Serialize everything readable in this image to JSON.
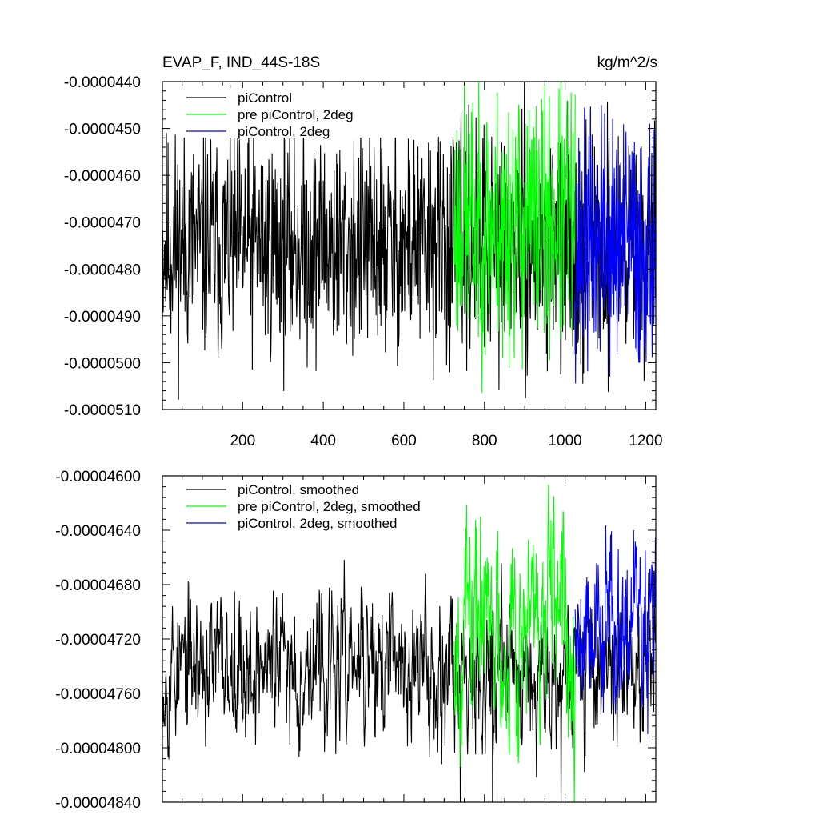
{
  "chart_data": [
    {
      "type": "line",
      "title": "EVAP_F, IND_44S-18S",
      "units": "kg/m^2/s",
      "xlim": [
        1,
        1225
      ],
      "ylim": [
        -5.1e-05,
        -4.4e-05
      ],
      "x_ticks": [
        200,
        400,
        600,
        800,
        1000,
        1200
      ],
      "y_ticks": [
        -4.4e-05,
        -4.5e-05,
        -4.6e-05,
        -4.7e-05,
        -4.8e-05,
        -4.9e-05,
        -5e-05,
        -5.1e-05
      ],
      "y_tick_labels": [
        "-0.0000440",
        "-0.0000450",
        "-0.0000460",
        "-0.0000470",
        "-0.0000480",
        "-0.0000490",
        "-0.0000500",
        "-0.0000510"
      ],
      "x_tick_labels": [
        "200",
        "400",
        "600",
        "800",
        "1000",
        "1200"
      ],
      "legend_position": "top-left",
      "grid": false,
      "series": [
        {
          "name": "piControl",
          "color": "#000000",
          "x_range": [
            1,
            1225
          ],
          "mean": -4.75e-05,
          "amp": 1.2e-06,
          "spikes": [
            [
              148,
              -4.97e-05
            ],
            [
              990,
              -5.02e-05
            ],
            [
              1080,
              -4.97e-05
            ]
          ],
          "seed": 11
        },
        {
          "name": "pre piControl, 2deg",
          "color": "#00ff00",
          "x_range": [
            725,
            1025
          ],
          "mean": -4.7e-05,
          "amp": 1.4e-06,
          "spikes": [
            [
              1005,
              -4.44e-05
            ],
            [
              845,
              -4.99e-05
            ],
            [
              720,
              -4.6e-05
            ]
          ],
          "seed": 23
        },
        {
          "name": "piControl, 2deg",
          "color": "#0000ff",
          "x_range": [
            1025,
            1225
          ],
          "mean": -4.75e-05,
          "amp": 1.3e-06,
          "spikes": [
            [
              1090,
              -4.45e-05
            ],
            [
              1185,
              -5e-05
            ]
          ],
          "seed": 37
        }
      ]
    },
    {
      "type": "line",
      "title": "",
      "xlim": [
        1,
        1225
      ],
      "ylim": [
        -4.84e-05,
        -4.6e-05
      ],
      "x_ticks": [
        200,
        400,
        600,
        800,
        1000,
        1200
      ],
      "y_ticks": [
        -4.6e-05,
        -4.64e-05,
        -4.68e-05,
        -4.72e-05,
        -4.76e-05,
        -4.8e-05,
        -4.84e-05
      ],
      "y_tick_labels": [
        "-0.00004600",
        "-0.00004640",
        "-0.00004680",
        "-0.00004720",
        "-0.00004760",
        "-0.00004800",
        "-0.00004840"
      ],
      "legend_position": "top-left",
      "grid": false,
      "series": [
        {
          "name": "piControl, smoothed",
          "color": "#000000",
          "x_range": [
            1,
            1225
          ],
          "mean": -4.74e-05,
          "amp": 5e-07,
          "spikes": [
            [
              740,
              -4.84e-05
            ],
            [
              820,
              -4.84e-05
            ],
            [
              990,
              -4.84e-05
            ],
            [
              180,
              -4.685e-05
            ]
          ],
          "seed": 53
        },
        {
          "name": "pre piControl, 2deg, smoothed",
          "color": "#00ff00",
          "x_range": [
            725,
            1025
          ],
          "mean": -4.71e-05,
          "amp": 7e-07,
          "spikes": [
            [
              790,
              -4.63e-05
            ],
            [
              840,
              -4.78e-05
            ]
          ],
          "seed": 67
        },
        {
          "name": "piControl, 2deg, smoothed",
          "color": "#0000ff",
          "x_range": [
            1025,
            1225
          ],
          "mean": -4.705e-05,
          "amp": 6e-07,
          "spikes": [
            [
              1170,
              -4.64e-05
            ],
            [
              1205,
              -4.79e-05
            ]
          ],
          "seed": 79
        }
      ]
    }
  ]
}
